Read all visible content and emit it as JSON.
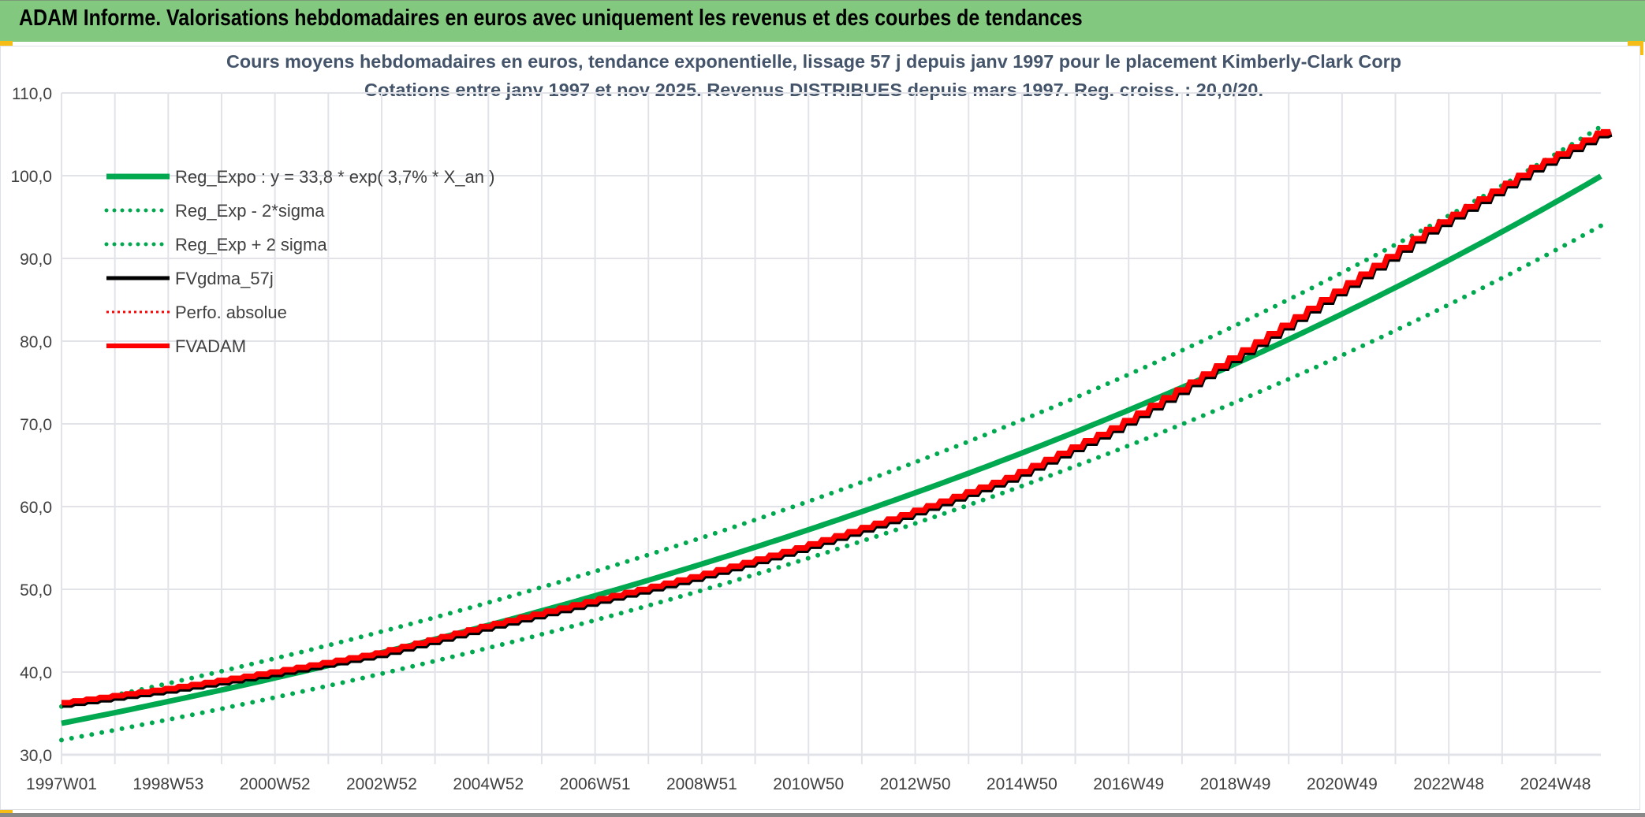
{
  "header": {
    "title": "ADAM Informe. Valorisations hebdomadaires en euros avec uniquement les revenus et des courbes de tendances"
  },
  "chart_data": {
    "type": "line",
    "title": "Cours moyens hebdomadaires en euros, tendance exponentielle, lissage 57 j depuis janv 1997 pour le placement Kimberly-Clark Corp",
    "subtitle": "Cotations entre janv 1997 et nov 2025. Revenus DISTRIBUES depuis mars 1997. Reg. croiss. : 20,0/20.",
    "xlabel": "",
    "ylabel": "",
    "ylim": [
      30,
      110
    ],
    "yticks": [
      "30,0",
      "40,0",
      "50,0",
      "60,0",
      "70,0",
      "80,0",
      "90,0",
      "100,0",
      "110,0"
    ],
    "xticks": [
      "1997W01",
      "1998W53",
      "2000W52",
      "2002W52",
      "2004W52",
      "2006W51",
      "2008W51",
      "2010W50",
      "2012W50",
      "2014W50",
      "2016W49",
      "2018W49",
      "2020W49",
      "2022W48",
      "2024W48"
    ],
    "x_years_span": 29.3,
    "grid": true,
    "legend_position": "top-left",
    "regression": {
      "a": 33.8,
      "rate": 0.037,
      "band_factor": 0.06
    },
    "series": [
      {
        "name": "Reg_Expo : y = 33,8 * exp( 3,7% *  X_an )",
        "color": "#00a84f",
        "style": "solid-thick"
      },
      {
        "name": "Reg_Exp - 2*sigma",
        "color": "#00a84f",
        "style": "dotted"
      },
      {
        "name": "Reg_Exp + 2 sigma",
        "color": "#00a84f",
        "style": "dotted"
      },
      {
        "name": "FVgdma_57j",
        "color": "#000000",
        "style": "solid"
      },
      {
        "name": "Perfo. absolue",
        "color": "#ff0000",
        "style": "dotted"
      },
      {
        "name": "FVADAM",
        "color": "#ff0000",
        "style": "solid-thick",
        "x_years": [
          0,
          2,
          4,
          6,
          8,
          10,
          12,
          14,
          16,
          18,
          20,
          22,
          24,
          26,
          28,
          29.3
        ],
        "values": [
          36.3,
          38.0,
          40.0,
          42.3,
          45.5,
          48.5,
          51.5,
          55.0,
          59.0,
          63.5,
          69.5,
          77.0,
          85.0,
          93.5,
          101.0,
          105.3
        ]
      }
    ]
  }
}
